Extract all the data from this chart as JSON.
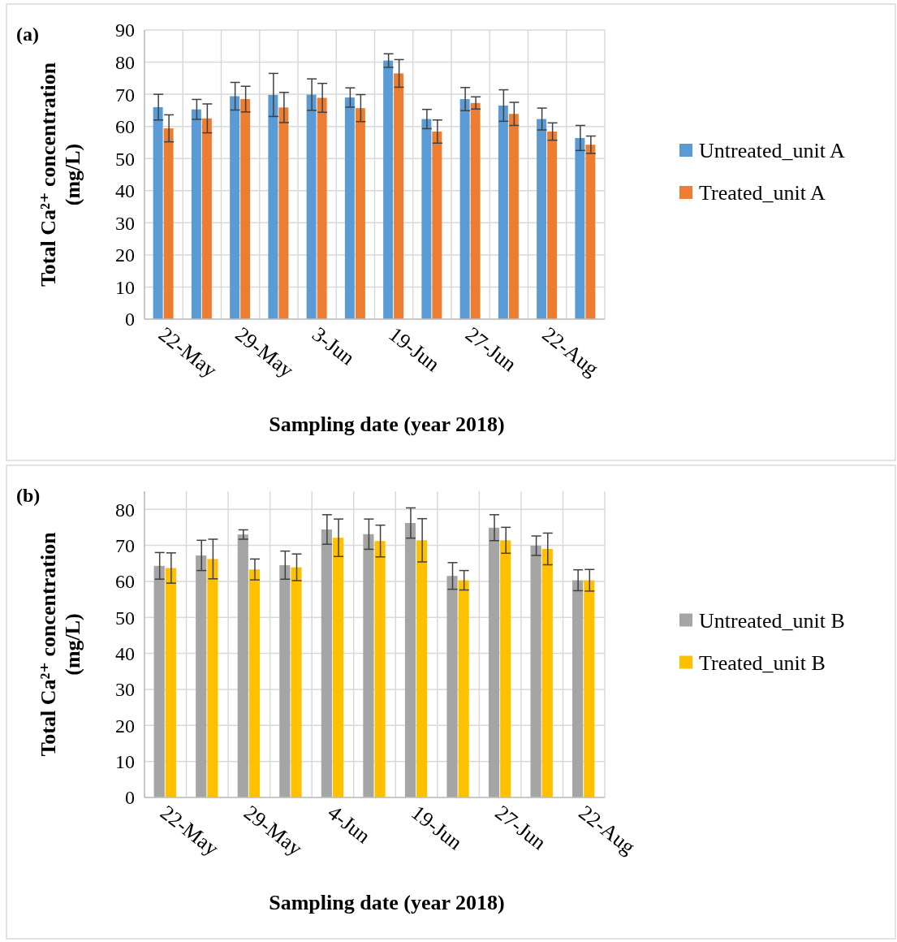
{
  "chart_data": [
    {
      "type": "bar",
      "title": "(a)",
      "xlabel": "Sampling date (year 2018)",
      "ylabel": "Total Ca²⁺ concentration\n(mg/L)",
      "categories": [
        "22-May",
        null,
        "29-May",
        null,
        "3-Jun",
        null,
        "19-Jun",
        null,
        "27-Jun",
        null,
        "22-Aug",
        null
      ],
      "series": [
        {
          "name": "Untreated_unit A",
          "color": "#5b9bd5",
          "values": [
            66,
            65.3,
            69.4,
            69.8,
            69.9,
            69,
            80.5,
            62.3,
            68.5,
            66.5,
            62.3,
            56.4
          ],
          "errors": [
            4,
            3.1,
            4.3,
            6.7,
            4.9,
            3,
            2.1,
            3,
            3.6,
            4.9,
            3.4,
            3.9
          ]
        },
        {
          "name": "Treated_unit A",
          "color": "#ed7d31",
          "values": [
            59.4,
            62.5,
            68.5,
            65.9,
            68.9,
            65.7,
            76.5,
            58.4,
            67.3,
            63.9,
            58.4,
            54.3
          ],
          "errors": [
            4.2,
            4.5,
            4,
            4.7,
            4.5,
            4.2,
            4.3,
            3.6,
            1.9,
            3.6,
            2.7,
            2.7
          ]
        }
      ],
      "ylim": [
        0,
        90
      ],
      "yticks": [
        0,
        10,
        20,
        30,
        40,
        50,
        60,
        70,
        80,
        90
      ],
      "grid": true,
      "legend": "right"
    },
    {
      "type": "bar",
      "title": "(b)",
      "xlabel": "Sampling date (year 2018)",
      "ylabel": "Total Ca²⁺ concentration\n(mg/L)",
      "categories": [
        "22-May",
        null,
        "29-May",
        null,
        "4-Jun",
        null,
        "19-Jun",
        null,
        "27-Jun",
        null,
        "22-Aug"
      ],
      "series": [
        {
          "name": "Untreated_unit B",
          "color": "#a5a5a5",
          "values": [
            64.3,
            67.2,
            73,
            64.5,
            74.4,
            73.1,
            76.2,
            61.5,
            74.9,
            69.9,
            60.3
          ],
          "errors": [
            3.7,
            4.2,
            1.3,
            3.9,
            4.1,
            4.2,
            4.2,
            3.7,
            3.6,
            2.7,
            2.9
          ]
        },
        {
          "name": "Treated_unit B",
          "color": "#ffc000",
          "values": [
            63.7,
            66.2,
            63.3,
            63.9,
            72.1,
            71.2,
            71.4,
            60.3,
            71.4,
            69,
            60.3
          ],
          "errors": [
            4.2,
            5.5,
            2.9,
            3.7,
            5.2,
            4.4,
            6,
            2.7,
            3.6,
            4.4,
            3
          ]
        }
      ],
      "ylim": [
        0,
        85
      ],
      "yticks": [
        0,
        10,
        20,
        30,
        40,
        50,
        60,
        70,
        80
      ],
      "grid": true,
      "legend": "right"
    }
  ]
}
